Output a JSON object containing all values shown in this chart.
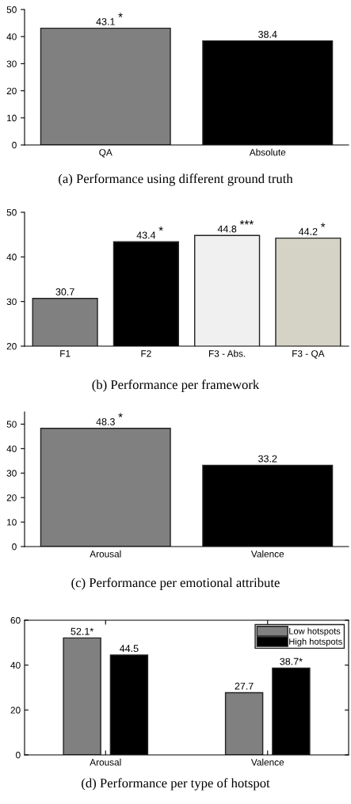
{
  "chart_data": [
    {
      "type": "bar",
      "title": "(a) Performance using different ground truth",
      "categories": [
        "QA",
        "Absolute"
      ],
      "values": [
        43.1,
        38.4
      ],
      "colors": [
        "#808080",
        "#000000"
      ],
      "ylim": [
        0,
        50
      ],
      "yticks": [
        0,
        10,
        20,
        30,
        40,
        50
      ],
      "data_labels": true,
      "grid": false,
      "legend": false,
      "annotations": [
        {
          "text": "*",
          "x": "QA",
          "y": 43.1
        }
      ]
    },
    {
      "type": "bar",
      "title": "(b) Performance per framework",
      "categories": [
        "F1",
        "F2",
        "F3 - Abs.",
        "F3 - QA"
      ],
      "values": [
        30.7,
        43.4,
        44.8,
        44.2
      ],
      "colors": [
        "#808080",
        "#000000",
        "#f0f0f0",
        "#d5d2c6"
      ],
      "ylim": [
        20,
        50
      ],
      "yticks": [
        20,
        30,
        40,
        50
      ],
      "data_labels": true,
      "grid": false,
      "legend": false,
      "annotations": [
        {
          "text": "*",
          "x": "F2",
          "y": 43.4
        },
        {
          "text": "***",
          "x": "F3 - Abs.",
          "y": 44.8
        },
        {
          "text": "*",
          "x": "F3 - QA",
          "y": 44.2
        }
      ]
    },
    {
      "type": "bar",
      "title": "(c) Performance per emotional attribute",
      "categories": [
        "Arousal",
        "Valence"
      ],
      "values": [
        48.3,
        33.2
      ],
      "colors": [
        "#808080",
        "#000000"
      ],
      "ylim": [
        0,
        55
      ],
      "yticks": [
        0,
        10,
        20,
        30,
        40,
        50
      ],
      "data_labels": true,
      "grid": false,
      "legend": false,
      "annotations": [
        {
          "text": "*",
          "x": "Arousal",
          "y": 48.3
        }
      ]
    },
    {
      "type": "bar",
      "title": "(d) Performance per type of hotspot",
      "categories": [
        "Arousal",
        "Valence"
      ],
      "ylim": [
        0,
        60
      ],
      "yticks": [
        0,
        20,
        40,
        60
      ],
      "grid": false,
      "legend": "top right",
      "series": [
        {
          "name": "Low hotspots",
          "color": "#808080",
          "values": [
            52.1,
            27.7
          ],
          "value_labels": [
            "52.1*",
            "27.7"
          ]
        },
        {
          "name": "High hotspots",
          "color": "#000000",
          "values": [
            44.5,
            38.7
          ],
          "value_labels": [
            "44.5",
            "38.7*"
          ]
        }
      ]
    }
  ]
}
